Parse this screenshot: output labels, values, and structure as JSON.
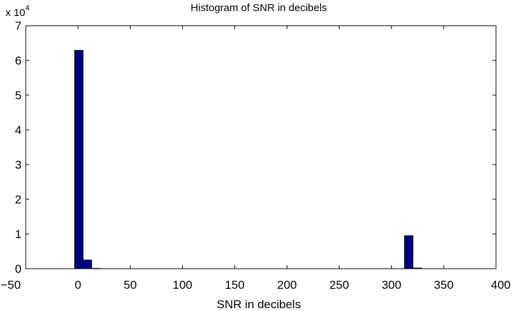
{
  "chart_data": {
    "type": "bar",
    "title": "Histogram of SNR in decibels",
    "xlabel": "SNR in decibels",
    "ylabel": "",
    "y_multiplier": "x 10",
    "y_multiplier_exp": "4",
    "xlim": [
      -50,
      400
    ],
    "ylim": [
      0,
      7
    ],
    "xticks": [
      "−50",
      "0",
      "50",
      "100",
      "150",
      "200",
      "250",
      "300",
      "350",
      "400"
    ],
    "xtick_values": [
      -50,
      0,
      50,
      100,
      150,
      200,
      250,
      300,
      350,
      400
    ],
    "yticks": [
      "0",
      "1",
      "2",
      "3",
      "4",
      "5",
      "6",
      "7"
    ],
    "ytick_values": [
      0,
      1,
      2,
      3,
      4,
      5,
      6,
      7
    ],
    "bin_width": 8.2,
    "bins": [
      {
        "center": 0.8,
        "value": 6.29
      },
      {
        "center": 9.0,
        "value": 0.25
      },
      {
        "center": 17.2,
        "value": 0.01
      },
      {
        "center": 316.5,
        "value": 0.95
      },
      {
        "center": 324.7,
        "value": 0.02
      }
    ],
    "bar_color": "#00007f",
    "grid": false
  }
}
